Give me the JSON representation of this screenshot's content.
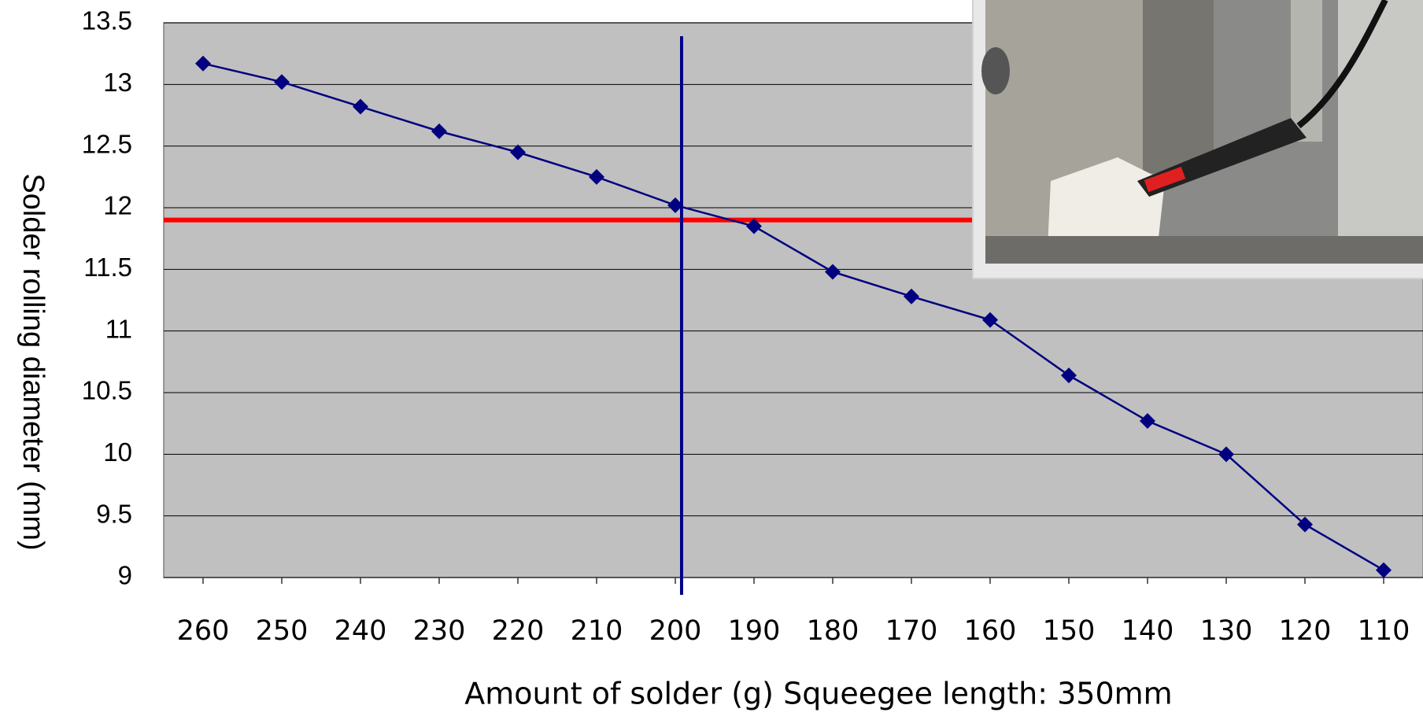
{
  "chart_data": {
    "type": "line",
    "x_label": "Amount of solder (g)  Squeegee length: 350mm",
    "y_label": "Solder rolling diameter (mm)",
    "x": [
      260,
      250,
      240,
      230,
      220,
      210,
      200,
      190,
      180,
      170,
      160,
      150,
      140,
      130,
      120,
      110
    ],
    "values": [
      13.17,
      13.02,
      12.82,
      12.62,
      12.45,
      12.25,
      12.02,
      11.85,
      11.48,
      11.28,
      11.09,
      10.64,
      10.27,
      10.0,
      9.43,
      9.06
    ],
    "color": "#000080",
    "xlim": [
      265,
      105
    ],
    "xticks": [
      260,
      250,
      240,
      230,
      220,
      210,
      200,
      190,
      180,
      170,
      160,
      150,
      140,
      130,
      120,
      110
    ],
    "ylim": [
      9,
      13.5
    ],
    "yticks": [
      9,
      9.5,
      10,
      10.5,
      11,
      11.5,
      12,
      12.5,
      13,
      13.5
    ],
    "grid": true,
    "reference_lines": [
      {
        "axis": "y",
        "value": 11.9,
        "color": "#ff0000"
      },
      {
        "axis": "x",
        "value": 199.2,
        "color": "#00008b"
      }
    ]
  }
}
